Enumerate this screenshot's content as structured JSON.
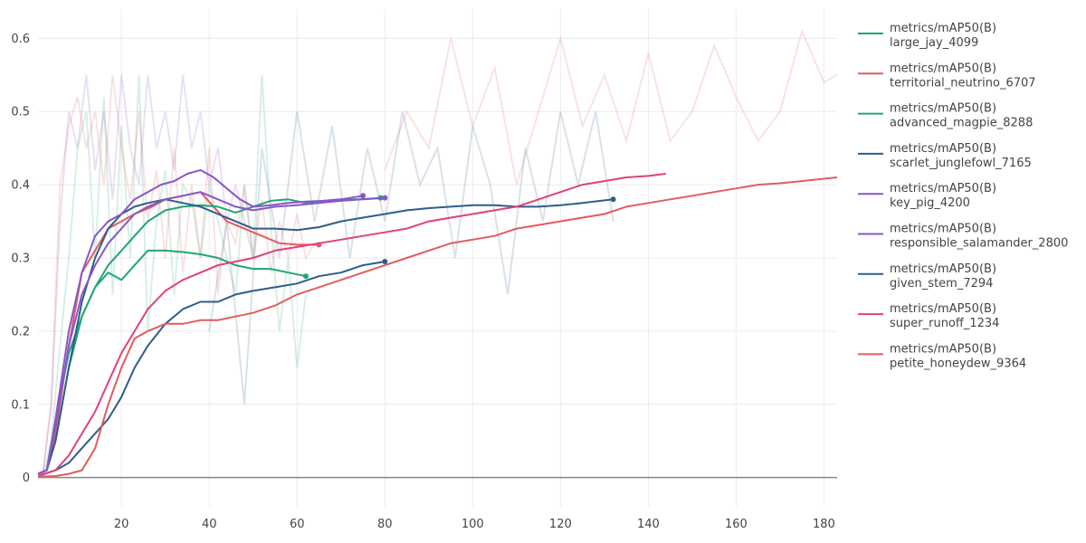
{
  "chart_data": {
    "type": "line",
    "xlim": [
      1,
      183
    ],
    "ylim": [
      -0.04,
      0.64
    ],
    "x_ticks": [
      20,
      40,
      60,
      80,
      100,
      120,
      140,
      160,
      180
    ],
    "y_ticks": [
      0,
      0.1,
      0.2,
      0.3,
      0.4,
      0.5,
      0.6
    ],
    "x_tick_labels": [
      "20",
      "40",
      "60",
      "80",
      "100",
      "120",
      "140",
      "160",
      "180"
    ],
    "y_tick_labels": [
      "0",
      "0.1",
      "0.2",
      "0.3",
      "0.4",
      "0.5",
      "0.6"
    ],
    "grid": true,
    "legend_position": "right",
    "series": [
      {
        "name": "metrics/mAP50(B)",
        "run": "large_jay_4099",
        "color": "#1fa774",
        "marker_end": true,
        "x": [
          1,
          3,
          5,
          8,
          11,
          14,
          17,
          20,
          23,
          26,
          30,
          34,
          38,
          42,
          46,
          50,
          54,
          58,
          62
        ],
        "y": [
          0.005,
          0.01,
          0.05,
          0.15,
          0.22,
          0.26,
          0.28,
          0.27,
          0.29,
          0.31,
          0.31,
          0.308,
          0.305,
          0.3,
          0.29,
          0.285,
          0.285,
          0.28,
          0.275
        ]
      },
      {
        "name": "metrics/mAP50(B)",
        "run": "territorial_neutrino_6707",
        "color": "#e25c5c",
        "marker_end": true,
        "x": [
          1,
          3,
          5,
          8,
          11,
          14,
          17,
          20,
          23,
          27,
          30,
          34,
          38,
          41,
          44,
          48,
          52,
          56,
          60,
          65
        ],
        "y": [
          0.005,
          0.01,
          0.06,
          0.18,
          0.28,
          0.31,
          0.34,
          0.35,
          0.36,
          0.37,
          0.38,
          0.385,
          0.39,
          0.37,
          0.35,
          0.34,
          0.33,
          0.32,
          0.318,
          0.318
        ]
      },
      {
        "name": "metrics/mAP50(B)",
        "run": "advanced_magpie_8288",
        "color": "#1fa774",
        "marker_end": true,
        "x": [
          1,
          3,
          5,
          8,
          11,
          14,
          17,
          20,
          23,
          26,
          30,
          34,
          38,
          42,
          46,
          50,
          54,
          58,
          62,
          66,
          70,
          74,
          79
        ],
        "y": [
          0.005,
          0.01,
          0.08,
          0.17,
          0.22,
          0.26,
          0.29,
          0.31,
          0.33,
          0.35,
          0.365,
          0.37,
          0.372,
          0.37,
          0.362,
          0.37,
          0.378,
          0.38,
          0.375,
          0.378,
          0.38,
          0.38,
          0.382
        ]
      },
      {
        "name": "metrics/mAP50(B)",
        "run": "scarlet_junglefowl_7165",
        "color": "#2f5d8a",
        "marker_end": true,
        "x": [
          1,
          3,
          5,
          8,
          11,
          14,
          17,
          20,
          23,
          26,
          30,
          34,
          38,
          42,
          46,
          50,
          55,
          60,
          65,
          70,
          75,
          80,
          85,
          90,
          95,
          100,
          105,
          110,
          115,
          120,
          125,
          132
        ],
        "y": [
          0.005,
          0.01,
          0.05,
          0.15,
          0.24,
          0.3,
          0.34,
          0.36,
          0.37,
          0.375,
          0.38,
          0.375,
          0.37,
          0.36,
          0.35,
          0.34,
          0.34,
          0.338,
          0.342,
          0.35,
          0.355,
          0.36,
          0.365,
          0.368,
          0.37,
          0.372,
          0.372,
          0.37,
          0.37,
          0.372,
          0.375,
          0.38
        ]
      },
      {
        "name": "metrics/mAP50(B)",
        "run": "key_pig_4200",
        "color": "#8a55c9",
        "marker_end": true,
        "x": [
          1,
          3,
          5,
          8,
          11,
          14,
          17,
          20,
          23,
          26,
          29,
          32,
          35,
          38,
          41,
          44,
          47,
          50,
          54,
          58,
          62,
          66,
          70,
          75
        ],
        "y": [
          0.005,
          0.01,
          0.08,
          0.2,
          0.28,
          0.33,
          0.35,
          0.36,
          0.38,
          0.39,
          0.4,
          0.405,
          0.415,
          0.42,
          0.41,
          0.395,
          0.38,
          0.37,
          0.372,
          0.375,
          0.377,
          0.378,
          0.38,
          0.385
        ]
      },
      {
        "name": "metrics/mAP50(B)",
        "run": "responsible_salamander_2800",
        "color": "#8a55c9",
        "marker_end": true,
        "x": [
          1,
          3,
          5,
          8,
          11,
          14,
          17,
          20,
          23,
          26,
          30,
          34,
          38,
          42,
          46,
          50,
          55,
          60,
          65,
          70,
          75,
          80
        ],
        "y": [
          0.005,
          0.01,
          0.07,
          0.18,
          0.25,
          0.29,
          0.32,
          0.34,
          0.36,
          0.37,
          0.38,
          0.385,
          0.39,
          0.38,
          0.37,
          0.365,
          0.37,
          0.372,
          0.375,
          0.378,
          0.38,
          0.382
        ]
      },
      {
        "name": "metrics/mAP50(B)",
        "run": "given_stem_7294",
        "color": "#2f5d8a",
        "marker_end": true,
        "x": [
          1,
          5,
          8,
          11,
          14,
          17,
          20,
          23,
          26,
          30,
          34,
          38,
          42,
          46,
          50,
          55,
          60,
          65,
          70,
          75,
          80
        ],
        "y": [
          0.002,
          0.01,
          0.02,
          0.04,
          0.06,
          0.08,
          0.11,
          0.15,
          0.18,
          0.21,
          0.23,
          0.24,
          0.24,
          0.25,
          0.255,
          0.26,
          0.265,
          0.275,
          0.28,
          0.29,
          0.295
        ]
      },
      {
        "name": "metrics/mAP50(B)",
        "run": "super_runoff_1234",
        "color": "#e0407a",
        "marker_end": false,
        "x": [
          1,
          5,
          8,
          11,
          14,
          17,
          20,
          23,
          26,
          30,
          34,
          38,
          42,
          46,
          50,
          55,
          60,
          65,
          70,
          75,
          80,
          85,
          90,
          95,
          100,
          105,
          110,
          115,
          120,
          125,
          130,
          135,
          140,
          144
        ],
        "y": [
          0.002,
          0.01,
          0.03,
          0.06,
          0.09,
          0.13,
          0.17,
          0.2,
          0.23,
          0.255,
          0.27,
          0.28,
          0.29,
          0.295,
          0.3,
          0.31,
          0.315,
          0.32,
          0.325,
          0.33,
          0.335,
          0.34,
          0.35,
          0.355,
          0.36,
          0.365,
          0.37,
          0.38,
          0.39,
          0.4,
          0.405,
          0.41,
          0.412,
          0.415
        ]
      },
      {
        "name": "metrics/mAP50(B)",
        "run": "petite_honeydew_9364",
        "color": "#e25c5c",
        "marker_end": false,
        "x": [
          1,
          5,
          8,
          11,
          14,
          17,
          20,
          23,
          26,
          30,
          34,
          38,
          42,
          46,
          50,
          55,
          60,
          65,
          70,
          75,
          80,
          85,
          90,
          95,
          100,
          105,
          110,
          115,
          120,
          125,
          130,
          135,
          140,
          145,
          150,
          155,
          160,
          165,
          170,
          175,
          183
        ],
        "y": [
          0.001,
          0.002,
          0.005,
          0.01,
          0.04,
          0.1,
          0.15,
          0.19,
          0.2,
          0.21,
          0.21,
          0.215,
          0.215,
          0.22,
          0.225,
          0.235,
          0.25,
          0.26,
          0.27,
          0.28,
          0.29,
          0.3,
          0.31,
          0.32,
          0.325,
          0.33,
          0.34,
          0.345,
          0.35,
          0.355,
          0.36,
          0.37,
          0.375,
          0.38,
          0.385,
          0.39,
          0.395,
          0.4,
          0.402,
          0.405,
          0.41
        ]
      }
    ],
    "raw_series": [
      {
        "color": "#1fa774",
        "x": [
          2,
          4,
          6,
          8,
          10,
          12,
          14,
          16,
          18,
          20,
          22,
          24,
          26,
          28,
          30,
          32,
          34,
          36,
          38,
          40,
          42,
          44,
          46,
          48,
          50,
          52,
          54,
          56,
          58,
          60,
          62
        ],
        "y": [
          0.0,
          0.05,
          0.18,
          0.3,
          0.45,
          0.5,
          0.3,
          0.52,
          0.25,
          0.48,
          0.3,
          0.55,
          0.2,
          0.35,
          0.42,
          0.25,
          0.4,
          0.38,
          0.3,
          0.4,
          0.35,
          0.3,
          0.25,
          0.4,
          0.3,
          0.55,
          0.35,
          0.2,
          0.3,
          0.15,
          0.25
        ]
      },
      {
        "color": "#e25c5c",
        "x": [
          2,
          4,
          6,
          8,
          10,
          12,
          14,
          16,
          18,
          20,
          22,
          24,
          26,
          28,
          30,
          32,
          34,
          36,
          38,
          40,
          42,
          44,
          46,
          48,
          50,
          52,
          54,
          56,
          58,
          60,
          62,
          64
        ],
        "y": [
          0.0,
          0.1,
          0.4,
          0.48,
          0.52,
          0.45,
          0.5,
          0.4,
          0.55,
          0.45,
          0.38,
          0.5,
          0.35,
          0.42,
          0.3,
          0.45,
          0.28,
          0.4,
          0.3,
          0.45,
          0.25,
          0.35,
          0.32,
          0.4,
          0.3,
          0.38,
          0.28,
          0.35,
          0.3,
          0.36,
          0.3,
          0.32
        ]
      },
      {
        "color": "#8a55c9",
        "x": [
          2,
          4,
          6,
          8,
          10,
          12,
          14,
          16,
          18,
          20,
          22,
          24,
          26,
          28,
          30,
          32,
          34,
          36,
          38,
          40,
          42,
          44,
          46,
          48,
          50
        ],
        "y": [
          0.0,
          0.1,
          0.35,
          0.5,
          0.45,
          0.55,
          0.42,
          0.5,
          0.38,
          0.55,
          0.45,
          0.4,
          0.55,
          0.45,
          0.5,
          0.42,
          0.55,
          0.45,
          0.5,
          0.4,
          0.45,
          0.35,
          0.4,
          0.35,
          0.3
        ]
      },
      {
        "color": "#2f5d8a",
        "x": [
          40,
          44,
          48,
          52,
          56,
          60,
          64,
          68,
          72,
          76,
          80,
          84,
          88,
          92,
          96,
          100,
          104,
          108,
          112,
          116,
          120,
          124,
          128,
          132
        ],
        "y": [
          0.2,
          0.35,
          0.1,
          0.45,
          0.3,
          0.5,
          0.35,
          0.48,
          0.3,
          0.45,
          0.35,
          0.5,
          0.4,
          0.45,
          0.3,
          0.48,
          0.4,
          0.25,
          0.45,
          0.35,
          0.5,
          0.4,
          0.5,
          0.35
        ]
      },
      {
        "color": "#e25c5c",
        "x": [
          80,
          85,
          90,
          95,
          100,
          105,
          110,
          115,
          120,
          125,
          130,
          135,
          140,
          145,
          150,
          155,
          160,
          165,
          170,
          175,
          180,
          183
        ],
        "y": [
          0.42,
          0.5,
          0.45,
          0.6,
          0.48,
          0.56,
          0.4,
          0.5,
          0.6,
          0.48,
          0.55,
          0.46,
          0.58,
          0.46,
          0.5,
          0.59,
          0.52,
          0.46,
          0.5,
          0.61,
          0.54,
          0.55
        ]
      }
    ]
  },
  "legend": [
    {
      "metric": "metrics/mAP50(B)",
      "run": "large_jay_4099",
      "color": "#1fa774"
    },
    {
      "metric": "metrics/mAP50(B)",
      "run": "territorial_neutrino_6707",
      "color": "#e25c5c"
    },
    {
      "metric": "metrics/mAP50(B)",
      "run": "advanced_magpie_8288",
      "color": "#1fa774"
    },
    {
      "metric": "metrics/mAP50(B)",
      "run": "scarlet_junglefowl_7165",
      "color": "#2f5d8a"
    },
    {
      "metric": "metrics/mAP50(B)",
      "run": "key_pig_4200",
      "color": "#8a55c9"
    },
    {
      "metric": "metrics/mAP50(B)",
      "run": "responsible_salamander_2800",
      "color": "#8a55c9"
    },
    {
      "metric": "metrics/mAP50(B)",
      "run": "given_stem_7294",
      "color": "#2f5d8a"
    },
    {
      "metric": "metrics/mAP50(B)",
      "run": "super_runoff_1234",
      "color": "#e0407a"
    },
    {
      "metric": "metrics/mAP50(B)",
      "run": "petite_honeydew_9364",
      "color": "#e25c5c"
    }
  ]
}
